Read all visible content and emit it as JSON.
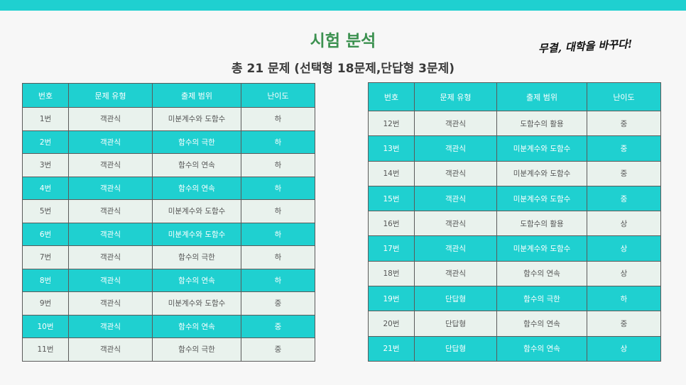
{
  "header": {
    "title": "시험 분석",
    "subtitle": "총 21 문제 (선택형 18문제,단답형 3문제)",
    "slogan": "무결, 대학을 바꾸다!"
  },
  "columns": [
    "번호",
    "문제 유형",
    "출제 범위",
    "난이도"
  ],
  "left_rows": [
    [
      "1번",
      "객관식",
      "미분계수와 도함수",
      "하"
    ],
    [
      "2번",
      "객관식",
      "함수의 극한",
      "하"
    ],
    [
      "3번",
      "객관식",
      "함수의 연속",
      "하"
    ],
    [
      "4번",
      "객관식",
      "함수의 연속",
      "하"
    ],
    [
      "5번",
      "객관식",
      "미분계수와 도함수",
      "하"
    ],
    [
      "6번",
      "객관식",
      "미분계수와 도함수",
      "하"
    ],
    [
      "7번",
      "객관식",
      "함수의 극한",
      "하"
    ],
    [
      "8번",
      "객관식",
      "함수의 연속",
      "하"
    ],
    [
      "9번",
      "객관식",
      "미분계수와 도함수",
      "중"
    ],
    [
      "10번",
      "객관식",
      "함수의 연속",
      "중"
    ],
    [
      "11번",
      "객관식",
      "함수의 극한",
      "중"
    ]
  ],
  "right_rows": [
    [
      "12번",
      "객관식",
      "도함수의 활용",
      "중"
    ],
    [
      "13번",
      "객관식",
      "미분계수와 도함수",
      "중"
    ],
    [
      "14번",
      "객관식",
      "미분계수와 도함수",
      "중"
    ],
    [
      "15번",
      "객관식",
      "미분계수와 도함수",
      "중"
    ],
    [
      "16번",
      "객관식",
      "도함수의 활용",
      "상"
    ],
    [
      "17번",
      "객관식",
      "미분계수와 도함수",
      "상"
    ],
    [
      "18번",
      "객관식",
      "함수의 연속",
      "상"
    ],
    [
      "19번",
      "단답형",
      "함수의 극한",
      "하"
    ],
    [
      "20번",
      "단답형",
      "함수의 연속",
      "중"
    ],
    [
      "21번",
      "단답형",
      "함수의 연속",
      "상"
    ]
  ],
  "colors": {
    "accent": "#1fd0d0",
    "title": "#3c9150",
    "row_light": "#e9f2ed"
  }
}
